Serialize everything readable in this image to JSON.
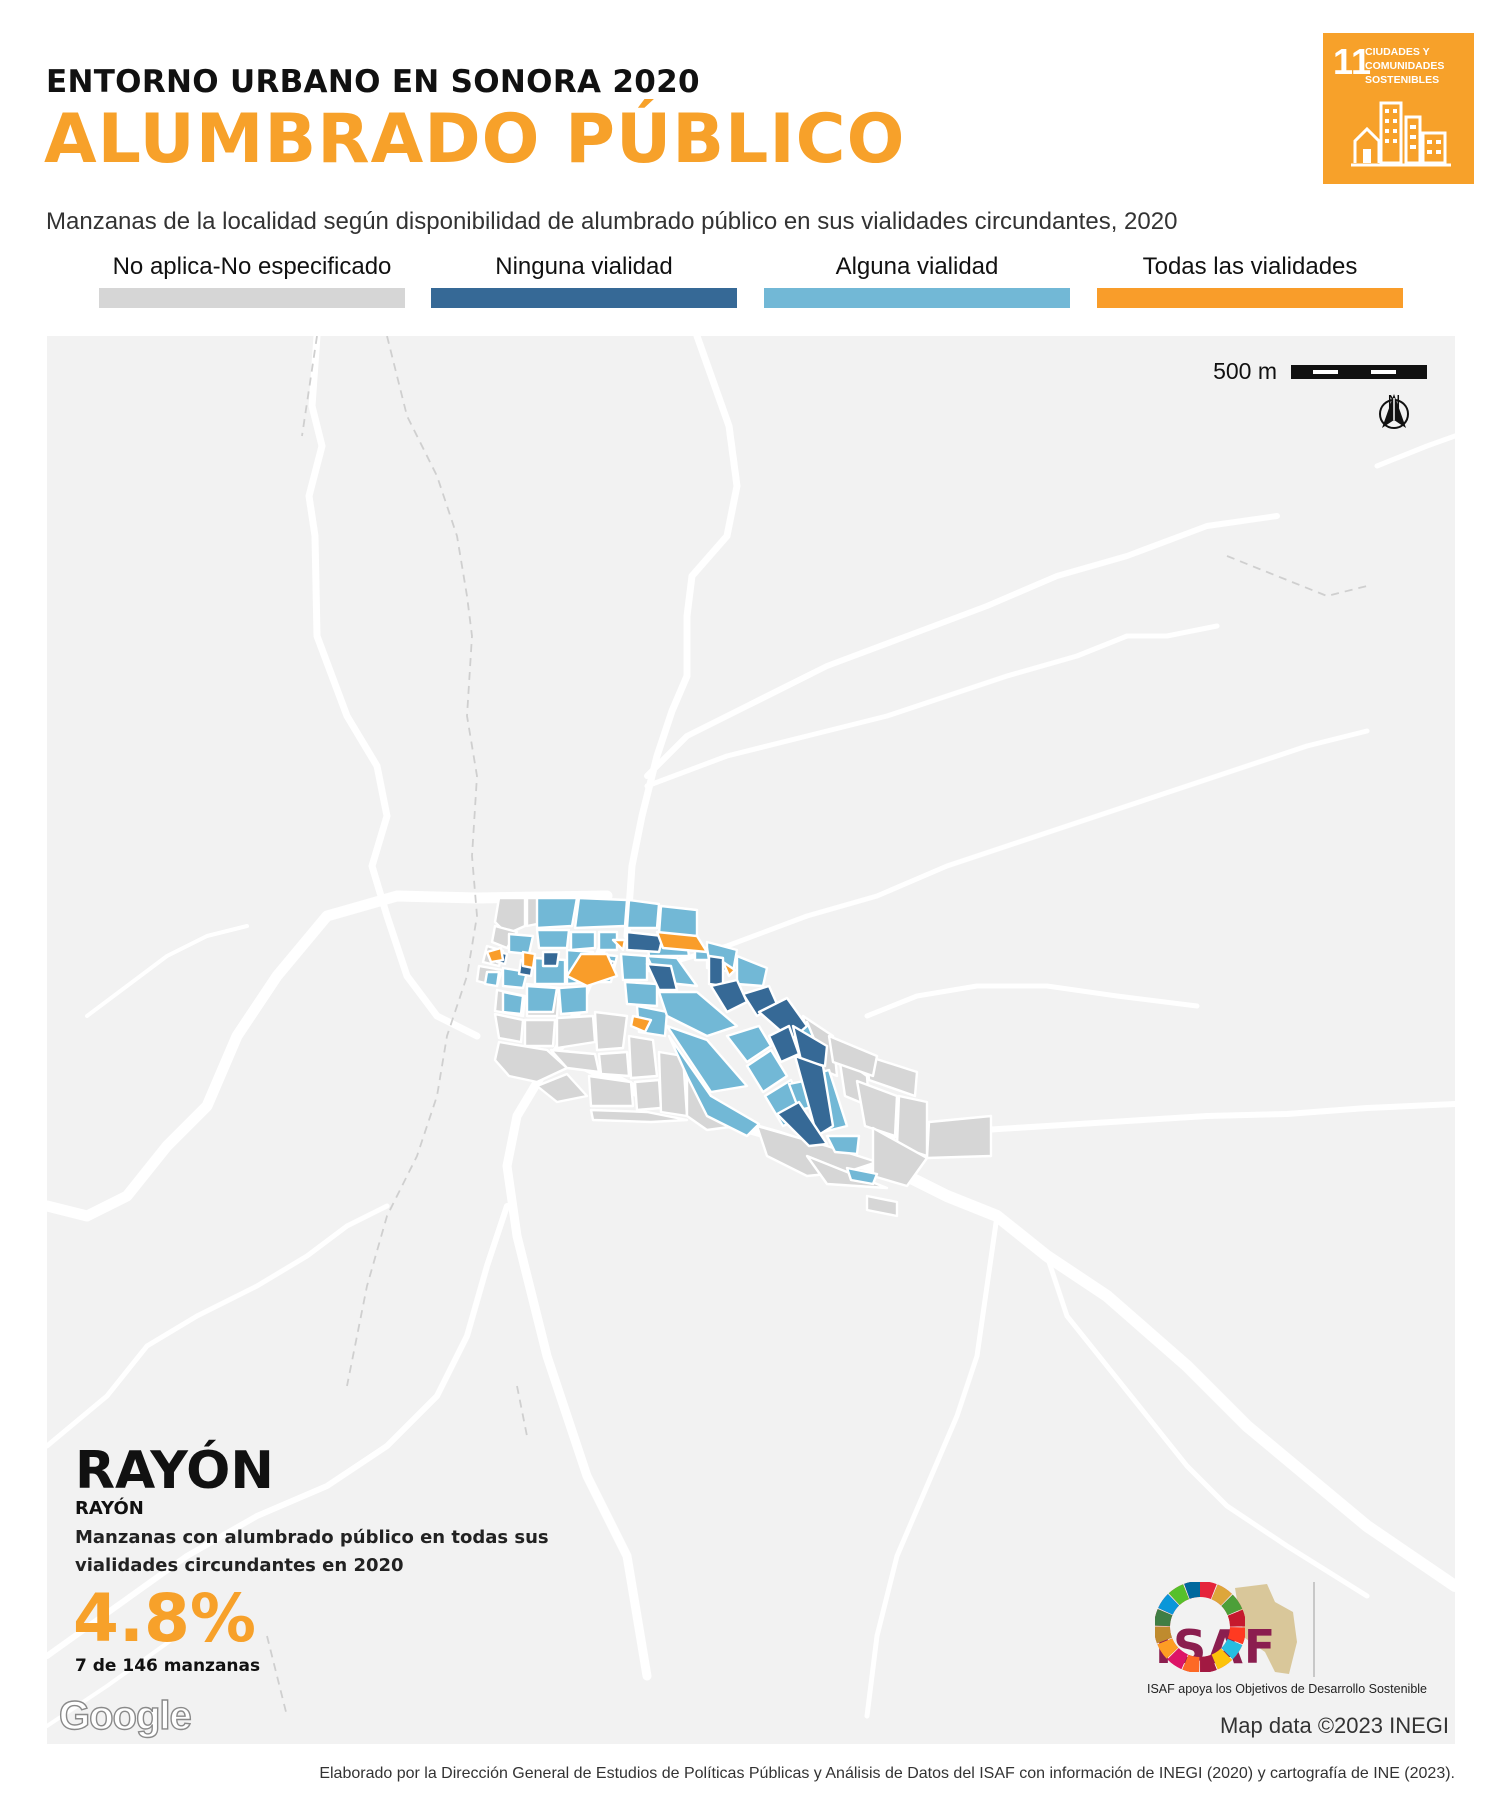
{
  "header": {
    "kicker": "ENTORNO URBANO EN SONORA 2020",
    "title": "ALUMBRADO PÚBLICO",
    "subtitle": "Manzanas de la localidad según disponibilidad de alumbrado público en sus vialidades circundantes, 2020"
  },
  "sdg_badge": {
    "number": "11",
    "text": "CIUDADES Y COMUNIDADES SOSTENIBLES",
    "color": "#f7a12a",
    "icon": "city-buildings-icon"
  },
  "legend": [
    {
      "label": "No aplica-No especificado",
      "color": "#d6d6d6"
    },
    {
      "label": "Ninguna vialidad",
      "color": "#366996"
    },
    {
      "label": "Alguna vialidad",
      "color": "#72b8d6"
    },
    {
      "label": "Todas las vialidades",
      "color": "#f99d2a"
    }
  ],
  "map": {
    "scale_label": "500 m",
    "north_label": "N",
    "credit": "Map data ©2023 INEGI",
    "google_logo": "Google"
  },
  "locality": {
    "name": "RAYÓN",
    "municipality": "RAYÓN",
    "stat_description": "Manzanas con alumbrado público en todas sus vialidades circundantes en 2020",
    "stat_value": "4.8%",
    "stat_count": "7 de 146 manzanas",
    "blocks_all_lit": 7,
    "blocks_total": 146
  },
  "branding": {
    "isaf_logo": "ISAF",
    "isaf_caption": "ISAF apoya los Objetivos de Desarrollo Sostenible"
  },
  "footer": "Elaborado por la Dirección General de Estudios de Políticas Públicas y Análisis de Datos del ISAF con información de INEGI (2020) y cartografía de INE (2023)."
}
